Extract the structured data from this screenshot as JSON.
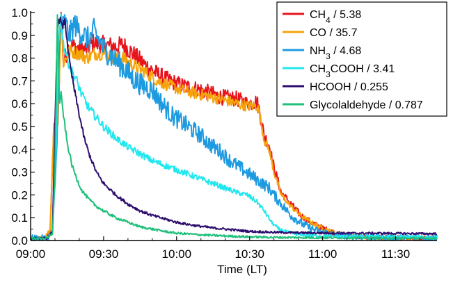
{
  "chart_data": {
    "type": "line",
    "xlabel": "Time (LT)",
    "ylabel": "",
    "xlim_min": [
      540,
      707
    ],
    "ylim": [
      0.0,
      1.0
    ],
    "y_ticks": [
      0.0,
      0.1,
      0.2,
      0.3,
      0.4,
      0.5,
      0.6,
      0.7,
      0.8,
      0.9,
      1.0
    ],
    "y_tick_labels": [
      "0.0",
      "0.1",
      "0.2",
      "0.3",
      "0.4",
      "0.5",
      "0.6",
      "0.7",
      "0.8",
      "0.9",
      "1.0"
    ],
    "x_ticks_min": [
      540,
      570,
      600,
      630,
      660,
      690
    ],
    "x_tick_labels": [
      "09:00",
      "09:30",
      "10:00",
      "10:30",
      "11:00",
      "11:30"
    ],
    "x_unit": "minutes after midnight (local time)",
    "grid": false,
    "legend_position": "top-right",
    "series": [
      {
        "key": "ch4",
        "name": "CH₄ / 5.38",
        "name_main": "CH",
        "name_sub": "4",
        "name_rest": " / 5.38",
        "color": "#e8141c",
        "noise": 0.03,
        "points": [
          [
            540,
            0.01
          ],
          [
            546,
            0.01
          ],
          [
            548,
            0.04
          ],
          [
            549.5,
            0.48
          ],
          [
            550.5,
            0.55
          ],
          [
            551.2,
            0.5
          ],
          [
            552.5,
            1.0
          ],
          [
            553.5,
            0.78
          ],
          [
            556,
            0.86
          ],
          [
            560,
            0.84
          ],
          [
            563,
            0.84
          ],
          [
            566,
            0.87
          ],
          [
            568,
            0.86
          ],
          [
            570,
            0.86
          ],
          [
            575,
            0.85
          ],
          [
            578,
            0.86
          ],
          [
            582,
            0.82
          ],
          [
            587,
            0.77
          ],
          [
            592,
            0.73
          ],
          [
            597,
            0.7
          ],
          [
            602,
            0.68
          ],
          [
            610,
            0.66
          ],
          [
            618,
            0.63
          ],
          [
            625,
            0.62
          ],
          [
            629,
            0.6
          ],
          [
            633,
            0.61
          ],
          [
            634,
            0.57
          ],
          [
            636,
            0.46
          ],
          [
            638,
            0.42
          ],
          [
            640,
            0.32
          ],
          [
            643,
            0.21
          ],
          [
            647,
            0.16
          ],
          [
            651,
            0.11
          ],
          [
            656,
            0.075
          ],
          [
            661,
            0.05
          ],
          [
            666,
            0.03
          ],
          [
            672,
            0.018
          ],
          [
            680,
            0.013
          ],
          [
            690,
            0.011
          ],
          [
            700,
            0.01
          ],
          [
            707,
            0.01
          ]
        ]
      },
      {
        "key": "co",
        "name": "CO / 35.7",
        "name_main": "CO / 35.7",
        "name_sub": "",
        "name_rest": "",
        "color": "#f5a30a",
        "noise": 0.022,
        "points": [
          [
            540,
            0.01
          ],
          [
            546,
            0.01
          ],
          [
            548,
            0.05
          ],
          [
            549.5,
            0.5
          ],
          [
            550.5,
            0.54
          ],
          [
            551.2,
            0.5
          ],
          [
            552.5,
            0.99
          ],
          [
            553.5,
            0.78
          ],
          [
            556,
            0.83
          ],
          [
            560,
            0.82
          ],
          [
            563,
            0.8
          ],
          [
            566,
            0.82
          ],
          [
            568,
            0.82
          ],
          [
            570,
            0.82
          ],
          [
            575,
            0.8
          ],
          [
            578,
            0.8
          ],
          [
            582,
            0.77
          ],
          [
            587,
            0.74
          ],
          [
            592,
            0.7
          ],
          [
            597,
            0.68
          ],
          [
            602,
            0.66
          ],
          [
            610,
            0.64
          ],
          [
            618,
            0.62
          ],
          [
            625,
            0.6
          ],
          [
            629,
            0.59
          ],
          [
            633,
            0.59
          ],
          [
            634,
            0.56
          ],
          [
            636,
            0.44
          ],
          [
            638,
            0.4
          ],
          [
            640,
            0.3
          ],
          [
            643,
            0.2
          ],
          [
            647,
            0.15
          ],
          [
            651,
            0.11
          ],
          [
            656,
            0.075
          ],
          [
            661,
            0.05
          ],
          [
            666,
            0.03
          ],
          [
            672,
            0.018
          ],
          [
            680,
            0.013
          ],
          [
            690,
            0.011
          ],
          [
            700,
            0.01
          ],
          [
            707,
            0.01
          ]
        ]
      },
      {
        "key": "nh3",
        "name": "NH₃ / 4.68",
        "name_main": "NH",
        "name_sub": "3",
        "name_rest": " / 4.68",
        "color": "#1e9be0",
        "noise": 0.04,
        "points": [
          [
            540,
            0.01
          ],
          [
            547,
            0.01
          ],
          [
            549,
            0.04
          ],
          [
            550.5,
            0.35
          ],
          [
            552,
            0.9
          ],
          [
            554,
            0.96
          ],
          [
            556,
            0.9
          ],
          [
            558,
            0.95
          ],
          [
            560,
            0.92
          ],
          [
            562,
            0.9
          ],
          [
            564,
            0.88
          ],
          [
            566,
            0.92
          ],
          [
            570,
            0.84
          ],
          [
            574,
            0.8
          ],
          [
            578,
            0.76
          ],
          [
            582,
            0.71
          ],
          [
            586,
            0.68
          ],
          [
            590,
            0.66
          ],
          [
            594,
            0.6
          ],
          [
            598,
            0.55
          ],
          [
            602,
            0.52
          ],
          [
            606,
            0.49
          ],
          [
            610,
            0.46
          ],
          [
            614,
            0.42
          ],
          [
            618,
            0.39
          ],
          [
            622,
            0.35
          ],
          [
            626,
            0.32
          ],
          [
            630,
            0.29
          ],
          [
            634,
            0.26
          ],
          [
            638,
            0.23
          ],
          [
            640,
            0.2
          ],
          [
            643,
            0.16
          ],
          [
            647,
            0.11
          ],
          [
            652,
            0.07
          ],
          [
            657,
            0.045
          ],
          [
            663,
            0.03
          ],
          [
            670,
            0.02
          ],
          [
            680,
            0.014
          ],
          [
            690,
            0.012
          ],
          [
            700,
            0.012
          ],
          [
            707,
            0.012
          ]
        ]
      },
      {
        "key": "ch3cooh",
        "name": "CH₃COOH / 3.41",
        "name_main": "CH",
        "name_sub": "3",
        "name_rest": "COOH / 3.41",
        "color": "#22e7ef",
        "noise": 0.018,
        "points": [
          [
            540,
            0.01
          ],
          [
            547,
            0.01
          ],
          [
            549,
            0.04
          ],
          [
            550.5,
            0.4
          ],
          [
            551.5,
            0.88
          ],
          [
            552.5,
            0.98
          ],
          [
            553.5,
            0.86
          ],
          [
            555,
            0.8
          ],
          [
            557,
            0.74
          ],
          [
            559,
            0.7
          ],
          [
            561,
            0.64
          ],
          [
            564,
            0.58
          ],
          [
            567,
            0.54
          ],
          [
            570,
            0.5
          ],
          [
            575,
            0.45
          ],
          [
            580,
            0.41
          ],
          [
            585,
            0.38
          ],
          [
            590,
            0.35
          ],
          [
            595,
            0.33
          ],
          [
            600,
            0.31
          ],
          [
            605,
            0.29
          ],
          [
            610,
            0.27
          ],
          [
            615,
            0.25
          ],
          [
            620,
            0.23
          ],
          [
            625,
            0.21
          ],
          [
            629,
            0.2
          ],
          [
            633,
            0.17
          ],
          [
            636,
            0.13
          ],
          [
            639,
            0.08
          ],
          [
            642,
            0.05
          ],
          [
            646,
            0.035
          ],
          [
            651,
            0.025
          ],
          [
            660,
            0.02
          ],
          [
            670,
            0.018
          ],
          [
            680,
            0.018
          ],
          [
            690,
            0.017
          ],
          [
            700,
            0.016
          ],
          [
            707,
            0.015
          ]
        ]
      },
      {
        "key": "hcooh",
        "name": "HCOOH / 0.255",
        "name_main": "HCOOH / 0.255",
        "name_sub": "",
        "name_rest": "",
        "color": "#2e0f6e",
        "noise": 0.012,
        "points": [
          [
            540,
            0.01
          ],
          [
            547,
            0.01
          ],
          [
            549,
            0.04
          ],
          [
            550,
            0.5
          ],
          [
            551,
            0.93
          ],
          [
            552,
            0.98
          ],
          [
            553,
            0.93
          ],
          [
            554,
            0.97
          ],
          [
            555,
            0.88
          ],
          [
            556,
            0.78
          ],
          [
            558,
            0.66
          ],
          [
            560,
            0.55
          ],
          [
            562,
            0.45
          ],
          [
            564,
            0.38
          ],
          [
            567,
            0.3
          ],
          [
            570,
            0.25
          ],
          [
            575,
            0.2
          ],
          [
            580,
            0.16
          ],
          [
            585,
            0.13
          ],
          [
            590,
            0.11
          ],
          [
            595,
            0.095
          ],
          [
            600,
            0.08
          ],
          [
            605,
            0.07
          ],
          [
            610,
            0.062
          ],
          [
            615,
            0.055
          ],
          [
            620,
            0.05
          ],
          [
            625,
            0.045
          ],
          [
            630,
            0.04
          ],
          [
            635,
            0.038
          ],
          [
            640,
            0.036
          ],
          [
            650,
            0.034
          ],
          [
            660,
            0.033
          ],
          [
            670,
            0.032
          ],
          [
            680,
            0.032
          ],
          [
            690,
            0.031
          ],
          [
            700,
            0.03
          ],
          [
            707,
            0.03
          ]
        ]
      },
      {
        "key": "glycolaldehyde",
        "name": "Glycolaldehyde / 0.787",
        "name_main": "Glycolaldehyde / 0.787",
        "name_sub": "",
        "name_rest": "",
        "color": "#1ec07a",
        "noise": 0.012,
        "points": [
          [
            540,
            0.01
          ],
          [
            547,
            0.01
          ],
          [
            549,
            0.03
          ],
          [
            550,
            0.3
          ],
          [
            551,
            1.0
          ],
          [
            551.8,
            0.6
          ],
          [
            552.5,
            0.64
          ],
          [
            553.5,
            0.55
          ],
          [
            555,
            0.43
          ],
          [
            557,
            0.33
          ],
          [
            559,
            0.27
          ],
          [
            561,
            0.22
          ],
          [
            564,
            0.18
          ],
          [
            567,
            0.15
          ],
          [
            570,
            0.13
          ],
          [
            575,
            0.1
          ],
          [
            580,
            0.08
          ],
          [
            585,
            0.06
          ],
          [
            590,
            0.05
          ],
          [
            595,
            0.04
          ],
          [
            600,
            0.032
          ],
          [
            610,
            0.025
          ],
          [
            620,
            0.02
          ],
          [
            630,
            0.016
          ],
          [
            640,
            0.014
          ],
          [
            650,
            0.013
          ],
          [
            660,
            0.012
          ],
          [
            680,
            0.011
          ],
          [
            700,
            0.01
          ],
          [
            707,
            0.01
          ]
        ]
      }
    ]
  }
}
